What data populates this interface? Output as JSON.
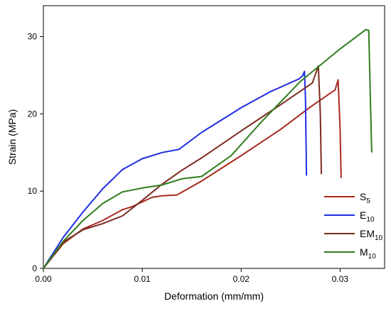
{
  "chart_data": {
    "type": "line",
    "title": "",
    "xlabel": "Deformation (mm/mm)",
    "ylabel": "Strain (MPa)",
    "xlim": [
      0,
      0.0345
    ],
    "ylim": [
      0,
      34
    ],
    "xticks": [
      0,
      0.01,
      0.02,
      0.03
    ],
    "xtick_labels": [
      "0.00",
      "0.01",
      "0.02",
      "0.03"
    ],
    "yticks": [
      0,
      10,
      20,
      30
    ],
    "ytick_labels": [
      "0",
      "10",
      "20",
      "30"
    ],
    "grid": false,
    "legend_position": "bottom-right",
    "series": [
      {
        "name": "S5",
        "label_main": "S",
        "label_sub": "5",
        "color": "#a52a1f",
        "points": [
          [
            0,
            0
          ],
          [
            0.002,
            3.2
          ],
          [
            0.004,
            5.1
          ],
          [
            0.006,
            6.2
          ],
          [
            0.008,
            7.6
          ],
          [
            0.009,
            8.0
          ],
          [
            0.01,
            8.6
          ],
          [
            0.011,
            9.2
          ],
          [
            0.012,
            9.4
          ],
          [
            0.0135,
            9.5
          ],
          [
            0.016,
            11.3
          ],
          [
            0.02,
            14.6
          ],
          [
            0.024,
            18.0
          ],
          [
            0.027,
            20.9
          ],
          [
            0.0295,
            23.1
          ],
          [
            0.0298,
            24.4
          ],
          [
            0.03,
            18.0
          ],
          [
            0.0301,
            11.7
          ]
        ]
      },
      {
        "name": "E10",
        "label_main": "E",
        "label_sub": "10",
        "color": "#1f2de0",
        "points": [
          [
            0,
            0
          ],
          [
            0.002,
            4.0
          ],
          [
            0.004,
            7.3
          ],
          [
            0.006,
            10.3
          ],
          [
            0.008,
            12.8
          ],
          [
            0.01,
            14.2
          ],
          [
            0.012,
            15.0
          ],
          [
            0.0137,
            15.4
          ],
          [
            0.016,
            17.6
          ],
          [
            0.02,
            20.8
          ],
          [
            0.023,
            22.9
          ],
          [
            0.0258,
            24.5
          ],
          [
            0.0262,
            24.9
          ],
          [
            0.0264,
            25.5
          ],
          [
            0.0265,
            22.0
          ],
          [
            0.0266,
            12.0
          ]
        ]
      },
      {
        "name": "EM10",
        "label_main": "EM",
        "label_sub": "10",
        "color": "#7b2a1e",
        "points": [
          [
            0,
            0
          ],
          [
            0.002,
            3.4
          ],
          [
            0.004,
            5.0
          ],
          [
            0.006,
            5.8
          ],
          [
            0.008,
            6.8
          ],
          [
            0.01,
            8.8
          ],
          [
            0.012,
            10.9
          ],
          [
            0.014,
            12.7
          ],
          [
            0.016,
            14.3
          ],
          [
            0.02,
            17.8
          ],
          [
            0.024,
            21.2
          ],
          [
            0.0272,
            24.0
          ],
          [
            0.0278,
            26.2
          ],
          [
            0.028,
            20.0
          ],
          [
            0.0281,
            12.2
          ]
        ]
      },
      {
        "name": "M10",
        "label_main": "M",
        "label_sub": "10",
        "color": "#2f7d1e",
        "points": [
          [
            0,
            0
          ],
          [
            0.002,
            3.5
          ],
          [
            0.004,
            6.2
          ],
          [
            0.006,
            8.4
          ],
          [
            0.008,
            9.9
          ],
          [
            0.01,
            10.4
          ],
          [
            0.012,
            10.8
          ],
          [
            0.014,
            11.6
          ],
          [
            0.016,
            11.9
          ],
          [
            0.019,
            14.6
          ],
          [
            0.022,
            18.9
          ],
          [
            0.026,
            24.2
          ],
          [
            0.03,
            28.4
          ],
          [
            0.0326,
            30.9
          ],
          [
            0.0329,
            30.8
          ],
          [
            0.0331,
            20.0
          ],
          [
            0.0332,
            15.0
          ]
        ]
      }
    ]
  }
}
